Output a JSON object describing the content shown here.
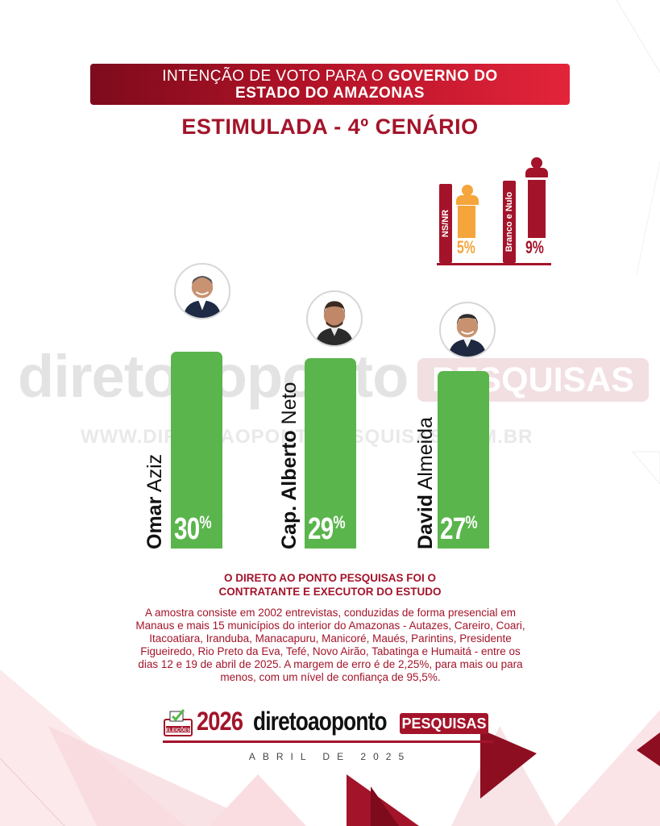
{
  "header": {
    "title_regular": "INTENÇÃO DE VOTO PARA O ",
    "title_bold_1": "GOVERNO DO",
    "title_bold_2": "ESTADO DO AMAZONAS"
  },
  "subtitle": "ESTIMULADA - 4º CENÁRIO",
  "chart_data": {
    "type": "bar",
    "categories": [
      "Omar Aziz",
      "Cap. Alberto Neto",
      "David Almeida"
    ],
    "values": [
      30,
      29,
      27
    ],
    "value_labels": [
      "30%",
      "29%",
      "27%"
    ],
    "name_parts": [
      {
        "bold": "Omar",
        "regular": "Aziz"
      },
      {
        "bold": "Cap. Alberto",
        "regular": "Neto"
      },
      {
        "bold": "David",
        "regular": "Almeida"
      }
    ],
    "color": "#5ab54c"
  },
  "others_chart": {
    "type": "bar",
    "categories": [
      "NS/NR",
      "Branco e Nulo"
    ],
    "values": [
      5,
      9
    ],
    "value_labels": [
      "5%",
      "9%"
    ],
    "colors": [
      "#f5a53b",
      "#a3142a"
    ]
  },
  "watermark": {
    "brand": "diretoaoponto",
    "badge": "PESQUISAS",
    "url": "WWW.DIRETOAOPONTOPESQUISAS.COM.BR"
  },
  "footer": {
    "contract_line_1": "O DIRETO AO PONTO PESQUISAS FOI O",
    "contract_line_2": "CONTRATANTE E EXECUTOR DO ESTUDO",
    "methodology": "A amostra consiste em 2002 entrevistas, conduzidas de forma presencial em Manaus e mais 15 municípios do interior do Amazonas - Autazes, Careiro, Coari, Itacoatiara, Iranduba, Manacapuru, Manicoré, Maués, Parintins, Presidente Figueiredo, Rio Preto da Eva, Tefé, Novo Airão, Tabatinga e Humaitá - entre os dias 12 e 19 de abril de 2025. A margem de erro é de 2,25%, para mais ou para menos, com um nível de confiança de 95,5%.",
    "logo_badge": "ELEIÇÕES",
    "logo_year": "2026",
    "logo_brand": "diretoaoponto",
    "logo_pesquisas": "PESQUISAS",
    "date": "ABRIL DE 2025"
  },
  "colors": {
    "accent_red": "#a3142a",
    "bar_green": "#5ab54c",
    "ns_orange": "#f5a53b"
  }
}
